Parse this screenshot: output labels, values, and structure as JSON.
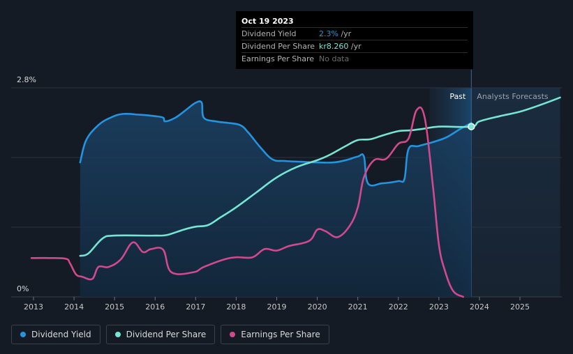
{
  "chart_data": {
    "type": "line",
    "y_axis": {
      "top_label": "2.8%",
      "bottom_label": "0%",
      "ylim": [
        0,
        2.8
      ],
      "unit": "%"
    },
    "x_ticks": [
      "2013",
      "2014",
      "2015",
      "2016",
      "2017",
      "2018",
      "2019",
      "2020",
      "2021",
      "2022",
      "2023",
      "2024",
      "2025"
    ],
    "xlim": [
      2012.6,
      2025.99
    ],
    "regions": {
      "past_label": "Past",
      "forecast_label": "Analysts Forecasts",
      "past_start": 2022.77,
      "cutoff": 2023.8
    },
    "series": [
      {
        "name": "Dividend Yield",
        "color": "#2394df",
        "fill": true,
        "points": [
          [
            2014.15,
            1.8
          ],
          [
            2014.3,
            2.1
          ],
          [
            2014.6,
            2.3
          ],
          [
            2014.9,
            2.4
          ],
          [
            2015.2,
            2.45
          ],
          [
            2015.6,
            2.44
          ],
          [
            2016.0,
            2.42
          ],
          [
            2016.2,
            2.4
          ],
          [
            2016.25,
            2.35
          ],
          [
            2016.5,
            2.4
          ],
          [
            2016.8,
            2.52
          ],
          [
            2017.0,
            2.6
          ],
          [
            2017.15,
            2.6
          ],
          [
            2017.2,
            2.4
          ],
          [
            2017.5,
            2.35
          ],
          [
            2017.8,
            2.33
          ],
          [
            2018.1,
            2.3
          ],
          [
            2018.3,
            2.2
          ],
          [
            2018.6,
            2.0
          ],
          [
            2018.9,
            1.84
          ],
          [
            2019.2,
            1.82
          ],
          [
            2019.6,
            1.81
          ],
          [
            2020.0,
            1.8
          ],
          [
            2020.4,
            1.8
          ],
          [
            2020.7,
            1.83
          ],
          [
            2021.0,
            1.88
          ],
          [
            2021.15,
            1.88
          ],
          [
            2021.25,
            1.52
          ],
          [
            2021.6,
            1.52
          ],
          [
            2022.0,
            1.55
          ],
          [
            2022.15,
            1.58
          ],
          [
            2022.25,
            1.98
          ],
          [
            2022.5,
            2.02
          ],
          [
            2022.9,
            2.08
          ],
          [
            2023.2,
            2.14
          ],
          [
            2023.5,
            2.24
          ],
          [
            2023.8,
            2.33
          ]
        ]
      },
      {
        "name": "Dividend Per Share",
        "color": "#76e6d4",
        "fill": false,
        "points": [
          [
            2014.15,
            0.55
          ],
          [
            2014.35,
            0.58
          ],
          [
            2014.7,
            0.78
          ],
          [
            2015.0,
            0.82
          ],
          [
            2016.0,
            0.82
          ],
          [
            2016.3,
            0.83
          ],
          [
            2016.7,
            0.9
          ],
          [
            2017.0,
            0.94
          ],
          [
            2017.3,
            0.96
          ],
          [
            2017.6,
            1.06
          ],
          [
            2018.0,
            1.2
          ],
          [
            2018.5,
            1.4
          ],
          [
            2019.0,
            1.6
          ],
          [
            2019.5,
            1.74
          ],
          [
            2020.0,
            1.83
          ],
          [
            2020.3,
            1.9
          ],
          [
            2020.7,
            2.02
          ],
          [
            2021.0,
            2.1
          ],
          [
            2021.3,
            2.11
          ],
          [
            2021.6,
            2.16
          ],
          [
            2022.0,
            2.22
          ],
          [
            2022.3,
            2.23
          ],
          [
            2022.6,
            2.25
          ],
          [
            2023.0,
            2.28
          ],
          [
            2023.8,
            2.28
          ],
          [
            2024.0,
            2.35
          ],
          [
            2024.5,
            2.42
          ],
          [
            2025.0,
            2.48
          ],
          [
            2025.5,
            2.57
          ],
          [
            2025.99,
            2.67
          ]
        ]
      },
      {
        "name": "Earnings Per Share",
        "color": "#d2498e",
        "fill": false,
        "points": [
          [
            2012.95,
            0.52
          ],
          [
            2013.4,
            0.52
          ],
          [
            2013.8,
            0.51
          ],
          [
            2013.9,
            0.45
          ],
          [
            2014.05,
            0.3
          ],
          [
            2014.2,
            0.27
          ],
          [
            2014.45,
            0.24
          ],
          [
            2014.6,
            0.4
          ],
          [
            2014.85,
            0.4
          ],
          [
            2015.15,
            0.5
          ],
          [
            2015.45,
            0.73
          ],
          [
            2015.7,
            0.6
          ],
          [
            2015.9,
            0.64
          ],
          [
            2016.2,
            0.63
          ],
          [
            2016.4,
            0.33
          ],
          [
            2016.95,
            0.33
          ],
          [
            2017.2,
            0.4
          ],
          [
            2017.7,
            0.5
          ],
          [
            2018.0,
            0.53
          ],
          [
            2018.4,
            0.53
          ],
          [
            2018.7,
            0.64
          ],
          [
            2019.0,
            0.62
          ],
          [
            2019.3,
            0.68
          ],
          [
            2019.8,
            0.75
          ],
          [
            2020.0,
            0.9
          ],
          [
            2020.2,
            0.88
          ],
          [
            2020.5,
            0.8
          ],
          [
            2020.8,
            0.95
          ],
          [
            2021.0,
            1.2
          ],
          [
            2021.15,
            1.6
          ],
          [
            2021.4,
            1.83
          ],
          [
            2021.7,
            1.85
          ],
          [
            2022.0,
            2.05
          ],
          [
            2022.25,
            2.12
          ],
          [
            2022.45,
            2.5
          ],
          [
            2022.65,
            2.4
          ],
          [
            2022.85,
            1.5
          ],
          [
            2023.0,
            0.7
          ],
          [
            2023.15,
            0.35
          ],
          [
            2023.35,
            0.08
          ],
          [
            2023.6,
            0.0
          ]
        ]
      }
    ],
    "marker": {
      "x": 2023.8,
      "y": 2.28,
      "color": "#76e6d4"
    }
  },
  "tooltip": {
    "date": "Oct 19 2023",
    "rows": [
      {
        "label": "Dividend Yield",
        "value": "2.3%",
        "unit": " /yr"
      },
      {
        "label": "Dividend Per Share",
        "value": "kr8.260",
        "unit": " /yr"
      },
      {
        "label": "Earnings Per Share",
        "value": "No data",
        "unit": ""
      }
    ]
  },
  "legend": [
    {
      "label": "Dividend Yield",
      "color": "#2394df"
    },
    {
      "label": "Dividend Per Share",
      "color": "#76e6d4"
    },
    {
      "label": "Earnings Per Share",
      "color": "#d2498e"
    }
  ]
}
